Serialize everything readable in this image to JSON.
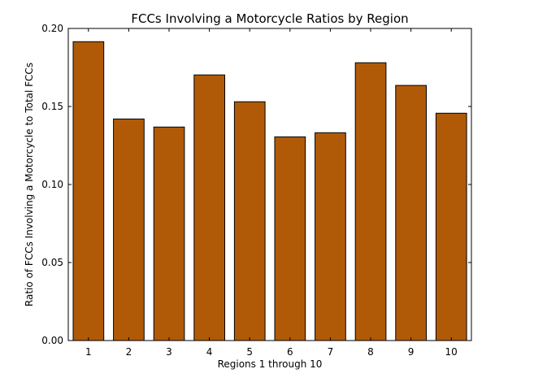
{
  "chart_data": {
    "type": "bar",
    "title": "FCCs Involving a Motorcycle Ratios by Region",
    "xlabel": "Regions 1 through 10",
    "ylabel": "Ratio of FCCs Involving a Motorcycle to Total FCCs",
    "categories": [
      "1",
      "2",
      "3",
      "4",
      "5",
      "6",
      "7",
      "8",
      "9",
      "10"
    ],
    "values": [
      0.1915,
      0.142,
      0.1368,
      0.1702,
      0.153,
      0.1305,
      0.1332,
      0.178,
      0.1635,
      0.1457
    ],
    "ylim": [
      0,
      0.2
    ],
    "yticks": [
      "0.00",
      "0.05",
      "0.10",
      "0.15",
      "0.20"
    ],
    "bar_color": "#b05a08",
    "grid": false,
    "legend": "none"
  }
}
